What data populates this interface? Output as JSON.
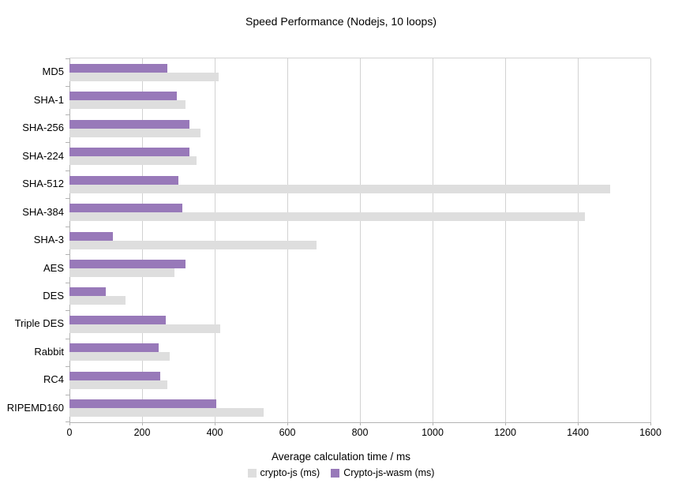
{
  "title": "Speed Performance (Nodejs, 10 loops)",
  "xlabel": "Average calculation time / ms",
  "chart_data": {
    "type": "bar",
    "orientation": "horizontal",
    "title": "Speed Performance (Nodejs, 10 loops)",
    "xlabel": "Average calculation time / ms",
    "ylabel": "",
    "categories": [
      "MD5",
      "SHA-1",
      "SHA-256",
      "SHA-224",
      "SHA-512",
      "SHA-384",
      "SHA-3",
      "AES",
      "DES",
      "Triple DES",
      "Rabbit",
      "RC4",
      "RIPEMD160"
    ],
    "series": [
      {
        "name": "crypto-js (ms)",
        "color": "#dedede",
        "values": [
          410,
          320,
          360,
          350,
          1490,
          1420,
          680,
          290,
          155,
          415,
          275,
          270,
          535
        ]
      },
      {
        "name": "Crypto-js-wasm (ms)",
        "color": "#9879b9",
        "values": [
          270,
          295,
          330,
          330,
          300,
          310,
          120,
          320,
          100,
          265,
          245,
          250,
          405
        ]
      }
    ],
    "xlim": [
      0,
      1600
    ],
    "xticks": [
      0,
      200,
      400,
      600,
      800,
      1000,
      1200,
      1400,
      1600
    ],
    "grid": true,
    "legend_position": "bottom",
    "colors": {
      "gridline": "#d2d2d2",
      "axis": "#b3b3b3",
      "text": "#000000",
      "background": "#ffffff"
    }
  }
}
